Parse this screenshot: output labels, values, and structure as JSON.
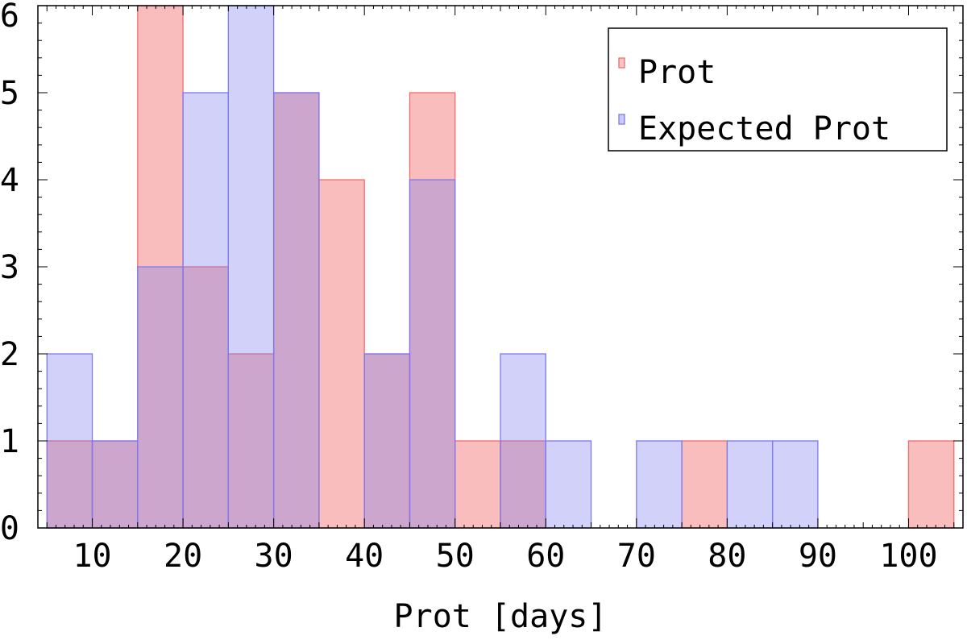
{
  "chart_data": {
    "type": "bar",
    "subtype": "overlaid-histogram",
    "xlabel": "Prot [days]",
    "ylabel": "",
    "xlim": [
      4,
      106
    ],
    "ylim": [
      0,
      6
    ],
    "xticks": [
      10,
      20,
      30,
      40,
      50,
      60,
      70,
      80,
      90,
      100
    ],
    "yticks": [
      0,
      1,
      2,
      3,
      4,
      5,
      6
    ],
    "bin_edges": [
      5,
      10,
      15,
      20,
      25,
      30,
      35,
      40,
      45,
      50,
      55,
      60,
      65,
      70,
      75,
      80,
      85,
      90,
      95,
      100,
      105
    ],
    "legend_position": "top-right",
    "grid": false,
    "series": [
      {
        "name": "Prot",
        "color": "#f26d6d",
        "values": [
          1,
          1,
          6,
          3,
          2,
          5,
          4,
          2,
          5,
          1,
          1,
          0,
          0,
          0,
          1,
          0,
          0,
          0,
          0,
          1
        ]
      },
      {
        "name": "Expected Prot",
        "color": "#7b7bef",
        "values": [
          2,
          1,
          3,
          5,
          6,
          5,
          0,
          2,
          4,
          0,
          2,
          1,
          0,
          1,
          0,
          1,
          1,
          0,
          0,
          0
        ]
      }
    ]
  }
}
